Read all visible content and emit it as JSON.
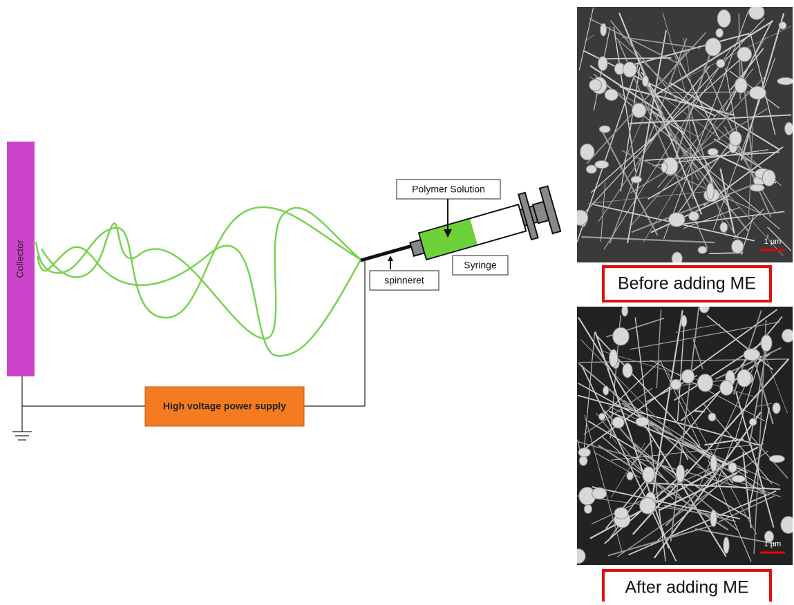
{
  "collector": {
    "label": "Collector"
  },
  "power_supply": {
    "label": "High voltage power supply"
  },
  "syringe": {
    "polymer_label": "Polymer Solution",
    "label": "Syringe",
    "spinneret_label": "spinneret"
  },
  "images": [
    {
      "caption": "Before adding ME",
      "scale_bar": "1 µm"
    },
    {
      "caption": "After adding ME",
      "scale_bar": "1 µm"
    }
  ]
}
